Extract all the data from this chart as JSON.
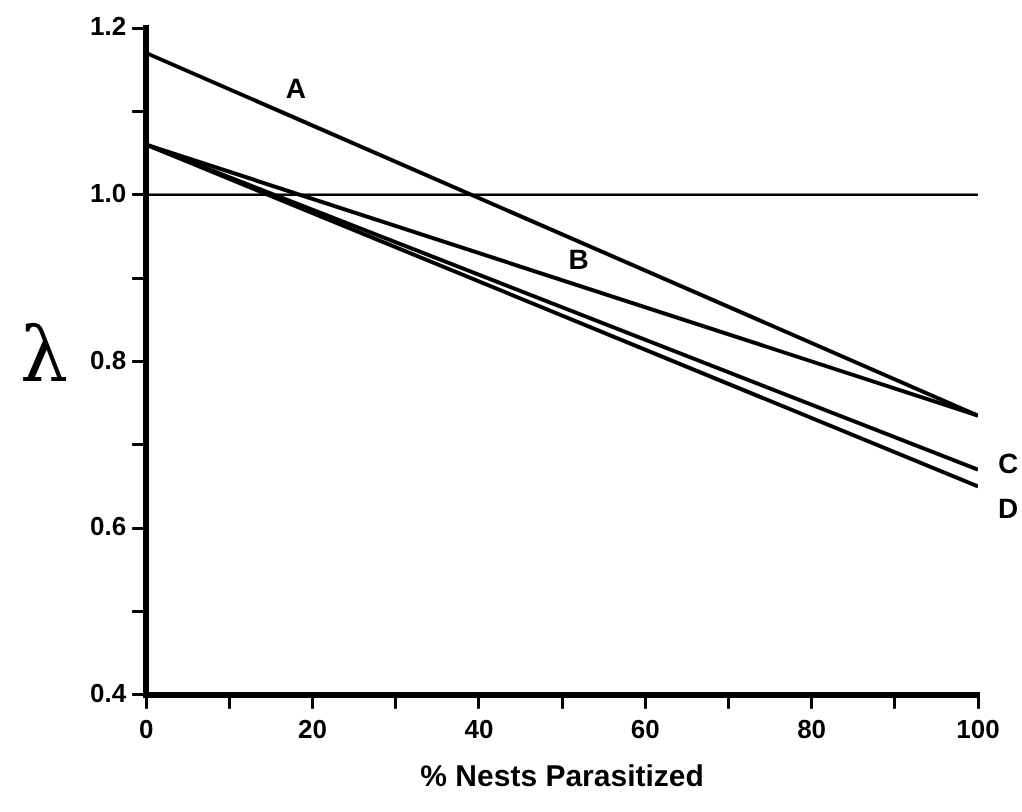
{
  "chart_data": {
    "type": "line",
    "xlabel": "% Nests Parasitized",
    "ylabel": "λ",
    "xlim": [
      0,
      100
    ],
    "ylim": [
      0.4,
      1.2
    ],
    "xticks": [
      0,
      {
        "value": 10,
        "label": null
      },
      20,
      {
        "value": 30,
        "label": null
      },
      40,
      {
        "value": 50,
        "label": null
      },
      60,
      {
        "value": 70,
        "label": null
      },
      80,
      {
        "value": 90,
        "label": null
      },
      100
    ],
    "yticks": [
      0.4,
      {
        "value": 0.5,
        "label": null
      },
      0.6,
      {
        "value": 0.7,
        "label": null
      },
      0.8,
      {
        "value": 0.9,
        "label": null
      },
      {
        "value": 1.0,
        "label": "1.0"
      },
      {
        "value": 1.1,
        "label": null
      },
      1.2
    ],
    "x": [
      0,
      100
    ],
    "series": [
      {
        "name": "A",
        "color": "#000000",
        "values": [
          1.17,
          0.735
        ]
      },
      {
        "name": "B",
        "color": "#000000",
        "values": [
          1.06,
          0.735
        ]
      },
      {
        "name": "C",
        "color": "#000000",
        "values": [
          1.06,
          0.67
        ]
      },
      {
        "name": "D",
        "color": "#000000",
        "values": [
          1.06,
          0.65
        ]
      }
    ],
    "ref_lines": [
      {
        "axis": "y",
        "value": 1.0,
        "color": "#000000"
      }
    ],
    "grid": false,
    "legend": false,
    "marker": "none",
    "line_style": "solid"
  }
}
